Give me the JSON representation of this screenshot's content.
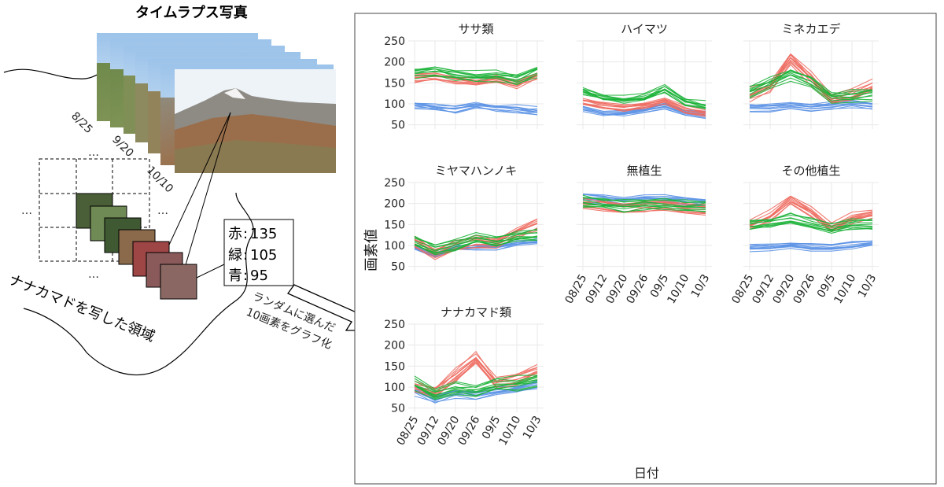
{
  "figure": {
    "timelapse_title": "タイムラプス写真",
    "photo_dates": [
      "8/25",
      "9/20",
      "10/10"
    ],
    "ellipsis": "…",
    "region_label": "ナナカマドを写した領域",
    "pixel_readout": [
      {
        "label": "赤",
        "value": "135"
      },
      {
        "label": "緑",
        "value": "105"
      },
      {
        "label": "青",
        "value": "95"
      }
    ],
    "arrow_text_line1": "ランダムに選んだ",
    "arrow_text_line2": "10画素をグラフ化",
    "y_axis_title": "画素値",
    "x_axis_title": "日付",
    "colors": {
      "red_channel": "#ee6b60",
      "green_channel": "#1db33a",
      "blue_channel": "#5d94e6",
      "grid": "#e8e8e8"
    }
  },
  "chart_data": {
    "type": "line",
    "x": [
      "08/25",
      "09/12",
      "09/20",
      "09/26",
      "09/5",
      "10/10",
      "10/3"
    ],
    "ylim": [
      40,
      250
    ],
    "yticks": [
      50,
      100,
      150,
      200,
      250
    ],
    "xlabel": "日付",
    "ylabel": "画素値",
    "panels": [
      {
        "title": "ササ類",
        "red": [
          165,
          170,
          160,
          155,
          160,
          150,
          170
        ],
        "green": [
          175,
          180,
          170,
          165,
          170,
          160,
          180
        ],
        "blue": [
          100,
          95,
          90,
          100,
          95,
          90,
          85
        ],
        "spread": [
          12,
          15,
          12
        ]
      },
      {
        "title": "ハイマツ",
        "red": [
          110,
          100,
          95,
          100,
          110,
          90,
          80
        ],
        "green": [
          135,
          120,
          115,
          120,
          140,
          110,
          100
        ],
        "blue": [
          90,
          80,
          80,
          85,
          95,
          80,
          75
        ],
        "spread": [
          10,
          12,
          8
        ]
      },
      {
        "title": "ミネカエデ",
        "red": [
          120,
          140,
          210,
          160,
          110,
          120,
          140
        ],
        "green": [
          130,
          150,
          170,
          150,
          115,
          120,
          125
        ],
        "blue": [
          90,
          90,
          95,
          90,
          95,
          100,
          95
        ],
        "spread": [
          15,
          15,
          8
        ]
      },
      {
        "title": "ミヤマハンノキ",
        "red": [
          110,
          80,
          100,
          110,
          105,
          130,
          150
        ],
        "green": [
          110,
          90,
          100,
          115,
          110,
          120,
          125
        ],
        "blue": [
          95,
          75,
          95,
          95,
          95,
          105,
          110
        ],
        "spread": [
          12,
          12,
          8
        ]
      },
      {
        "title": "無植生",
        "red": [
          200,
          195,
          190,
          195,
          195,
          190,
          185
        ],
        "green": [
          205,
          200,
          195,
          200,
          200,
          195,
          195
        ],
        "blue": [
          215,
          210,
          205,
          210,
          210,
          205,
          200
        ],
        "spread": [
          12,
          12,
          10
        ]
      },
      {
        "title": "その他植生",
        "red": [
          150,
          170,
          210,
          180,
          140,
          165,
          175
        ],
        "green": [
          150,
          155,
          165,
          150,
          140,
          150,
          150
        ],
        "blue": [
          95,
          95,
          100,
          95,
          95,
          100,
          105
        ],
        "spread": [
          12,
          12,
          8
        ]
      },
      {
        "title": "ナナカマド類",
        "red": [
          100,
          90,
          130,
          170,
          110,
          120,
          140
        ],
        "green": [
          110,
          85,
          100,
          95,
          110,
          110,
          120
        ],
        "blue": [
          90,
          70,
          85,
          80,
          90,
          95,
          105
        ],
        "spread": [
          15,
          15,
          10
        ]
      }
    ]
  }
}
